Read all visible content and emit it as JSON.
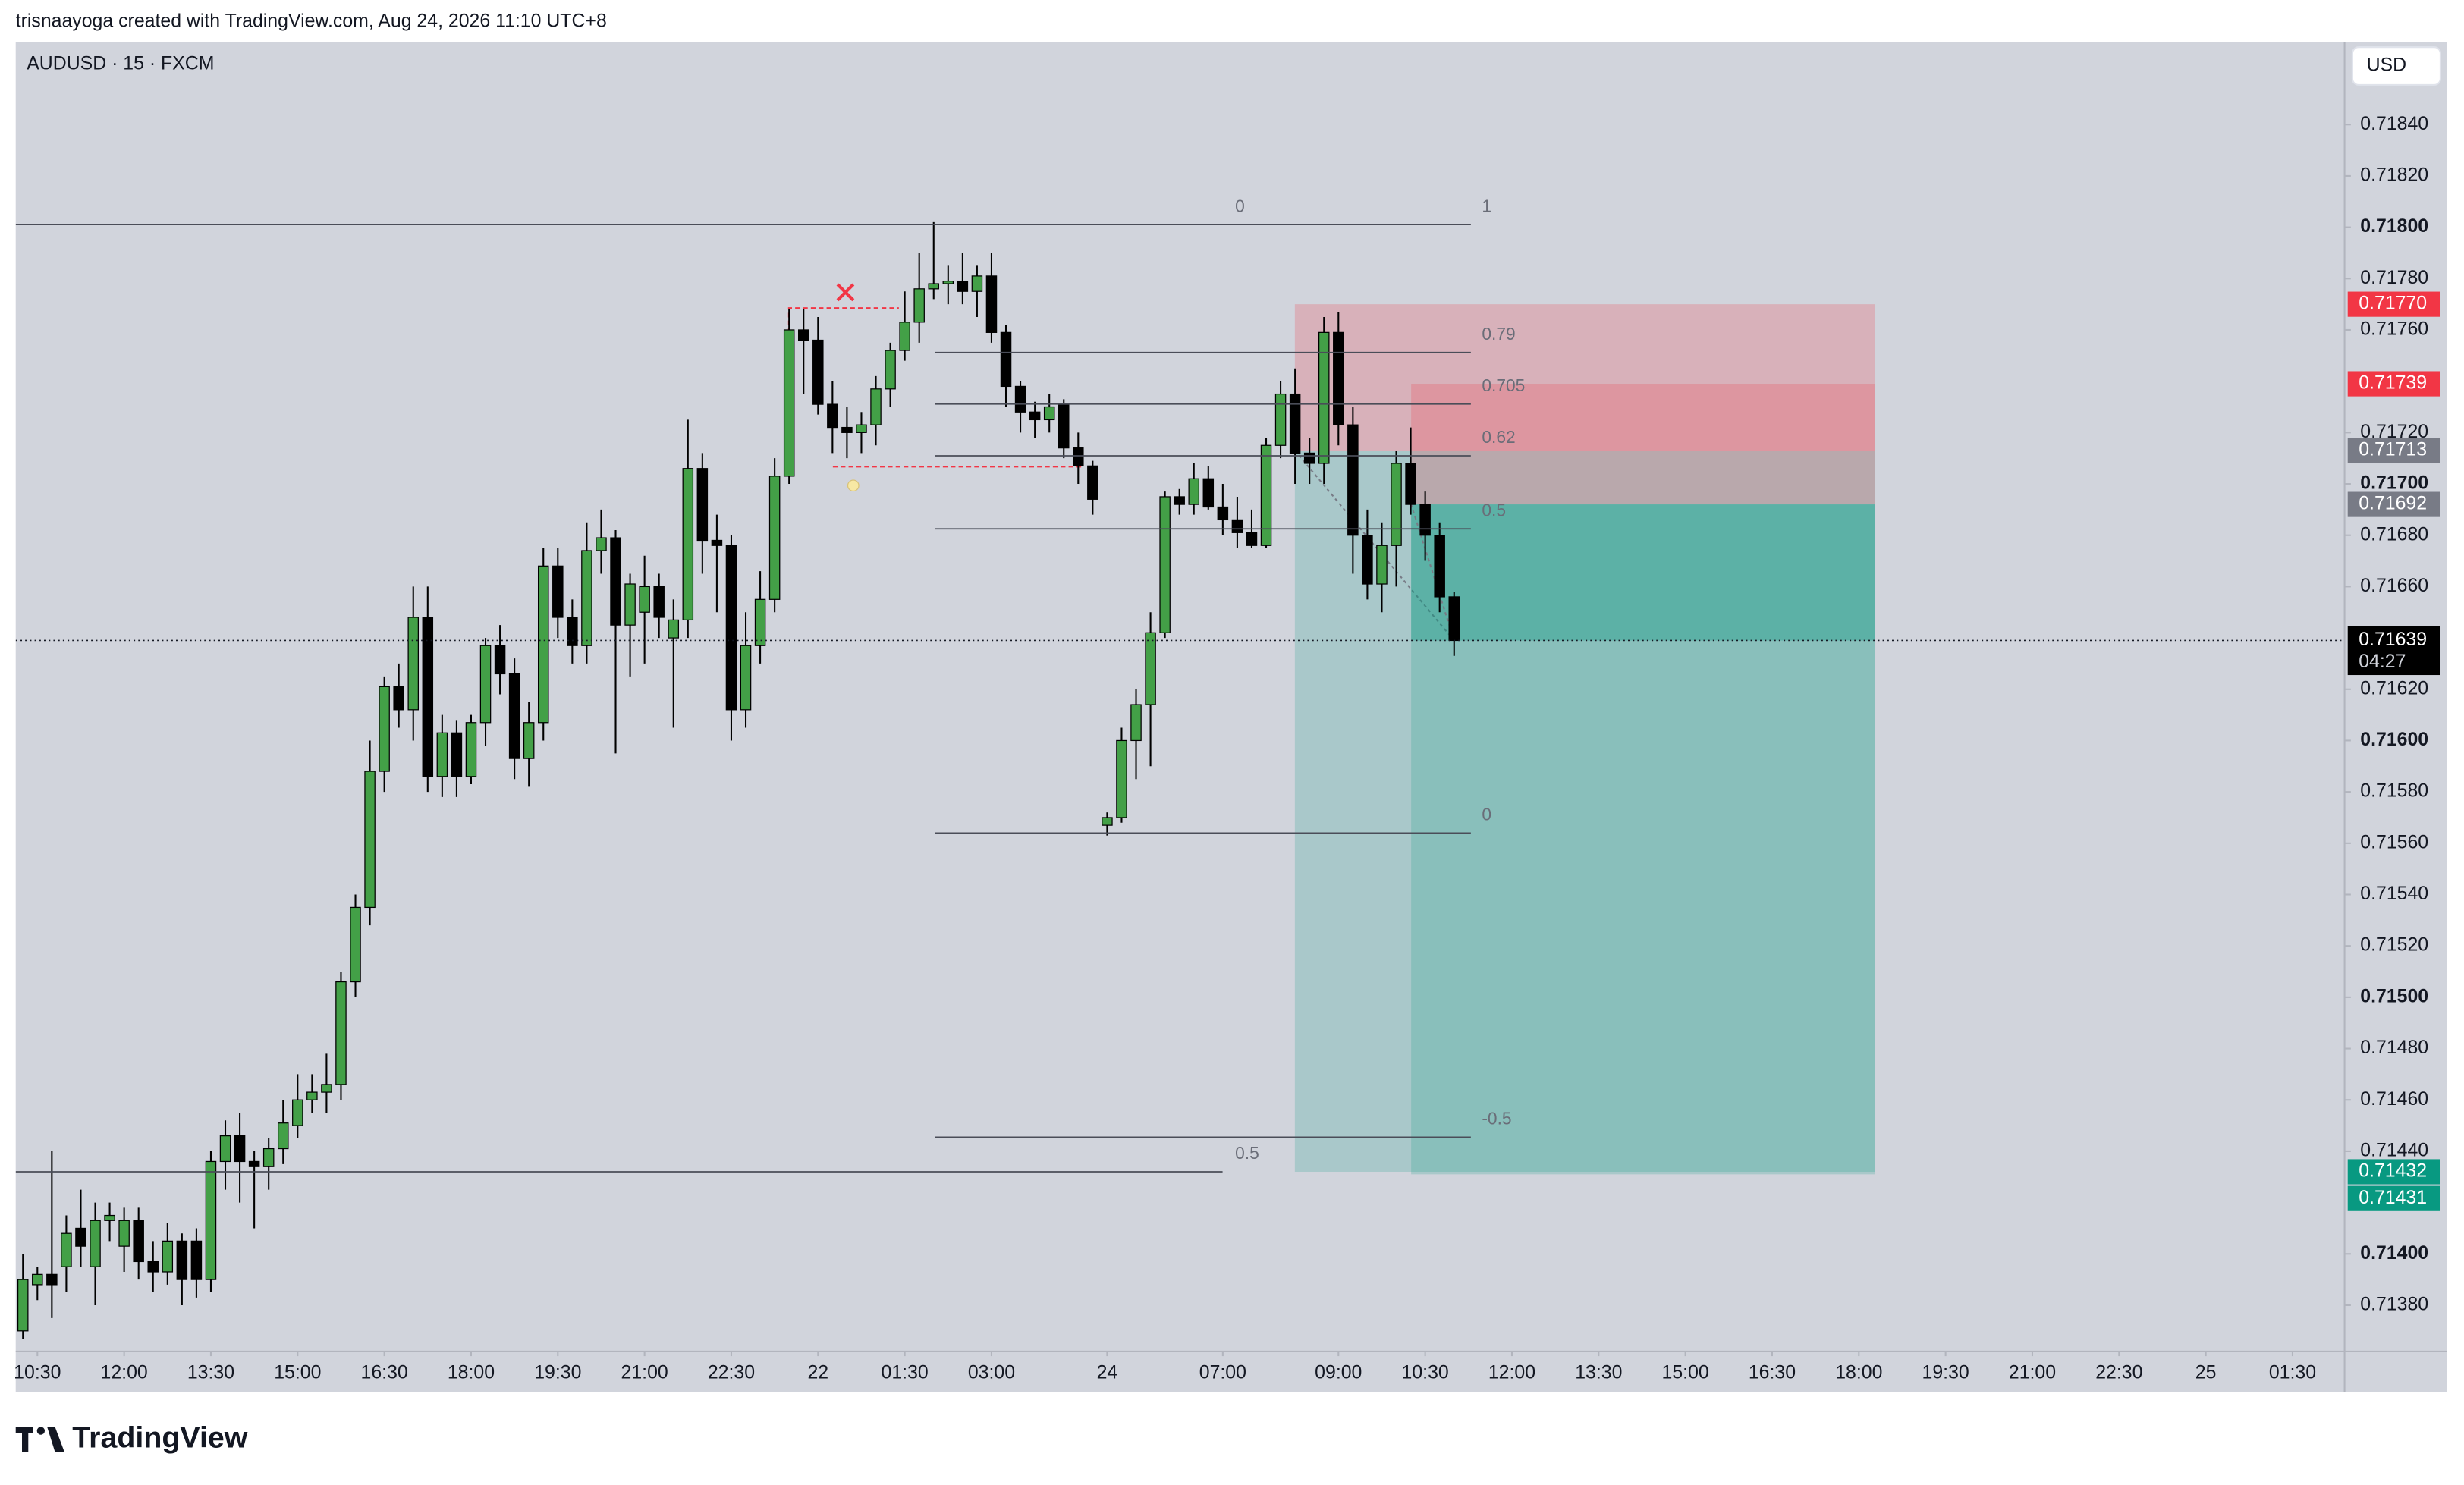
{
  "header": {
    "text": "trisnaayoga created with TradingView.com, Aug 24, 2026 11:10 UTC+8"
  },
  "logo": "TradingView",
  "chart_data": {
    "type": "candlestick",
    "title": "AUDUSD · 15 · FXCM",
    "currency": "USD",
    "up_color": "#43a047",
    "down_color": "#000000",
    "stop_color": "#f23645",
    "entry_color": "#787b86",
    "target_color": "#089981",
    "grid": false,
    "open": [
      0.7137,
      0.71388,
      0.71392,
      0.71395,
      0.7141,
      0.71395,
      0.71413,
      0.71403,
      0.71413,
      0.71397,
      0.71393,
      0.71405,
      0.71405,
      0.7139,
      0.71436,
      0.71446,
      0.71436,
      0.71434,
      0.71441,
      0.7145,
      0.7146,
      0.71463,
      0.71466,
      0.71506,
      0.71535,
      0.71588,
      0.71621,
      0.71612,
      0.71648,
      0.71586,
      0.71603,
      0.71586,
      0.71607,
      0.71637,
      0.71626,
      0.71593,
      0.71607,
      0.71668,
      0.71648,
      0.71637,
      0.71674,
      0.71679,
      0.71645,
      0.7165,
      0.7166,
      0.7164,
      0.71647,
      0.71706,
      0.71678,
      0.71676,
      0.71612,
      0.71637,
      0.71655,
      0.71703,
      0.7176,
      0.71756,
      0.71731,
      0.71722,
      0.7172,
      0.71723,
      0.71737,
      0.71752,
      0.71763,
      0.71776,
      0.71778,
      0.71779,
      0.71775,
      0.71781,
      0.71759,
      0.71738,
      0.71728,
      0.71725,
      0.71731,
      0.71714,
      0.71707,
      0.71567,
      0.7157,
      0.716,
      0.71614,
      0.71642,
      0.71695,
      0.71692,
      0.71702,
      0.71691,
      0.71686,
      0.71681,
      0.71676,
      0.71715,
      0.71735,
      0.71712,
      0.71708,
      0.71759,
      0.71723,
      0.7168,
      0.71661,
      0.71676,
      0.71708,
      0.71692,
      0.7168,
      0.71656
    ],
    "high": [
      0.714,
      0.71395,
      0.7144,
      0.71415,
      0.71425,
      0.7142,
      0.7142,
      0.71418,
      0.71418,
      0.71405,
      0.71412,
      0.71408,
      0.7141,
      0.7144,
      0.71452,
      0.71455,
      0.7144,
      0.71445,
      0.7146,
      0.7147,
      0.7147,
      0.71478,
      0.7151,
      0.7154,
      0.716,
      0.71625,
      0.7163,
      0.7166,
      0.7166,
      0.7161,
      0.71608,
      0.7161,
      0.7164,
      0.71645,
      0.71632,
      0.71615,
      0.71675,
      0.71675,
      0.71655,
      0.71685,
      0.7169,
      0.71682,
      0.71665,
      0.71672,
      0.71665,
      0.71655,
      0.71725,
      0.71712,
      0.71688,
      0.7168,
      0.7165,
      0.71666,
      0.7171,
      0.71768,
      0.71768,
      0.71765,
      0.7174,
      0.7173,
      0.71728,
      0.71742,
      0.71755,
      0.71775,
      0.7179,
      0.71802,
      0.71785,
      0.7179,
      0.71785,
      0.7179,
      0.71762,
      0.7174,
      0.71732,
      0.71735,
      0.71733,
      0.7172,
      0.71709,
      0.71572,
      0.71605,
      0.7162,
      0.7165,
      0.71697,
      0.71698,
      0.71708,
      0.71707,
      0.717,
      0.71695,
      0.7169,
      0.71718,
      0.7174,
      0.71745,
      0.71718,
      0.71765,
      0.71767,
      0.7173,
      0.7169,
      0.71685,
      0.71713,
      0.71722,
      0.71697,
      0.71685,
      0.71658
    ],
    "low": [
      0.71367,
      0.71382,
      0.71375,
      0.71385,
      0.71395,
      0.7138,
      0.71405,
      0.71393,
      0.7139,
      0.71385,
      0.71388,
      0.7138,
      0.71383,
      0.71385,
      0.71425,
      0.7142,
      0.7141,
      0.71425,
      0.71435,
      0.71445,
      0.71455,
      0.71455,
      0.7146,
      0.715,
      0.71528,
      0.7158,
      0.71605,
      0.716,
      0.7158,
      0.71578,
      0.71578,
      0.71583,
      0.71598,
      0.71618,
      0.71585,
      0.71582,
      0.716,
      0.7164,
      0.7163,
      0.7163,
      0.71665,
      0.71595,
      0.71625,
      0.7163,
      0.7164,
      0.71605,
      0.7164,
      0.71665,
      0.7165,
      0.716,
      0.71605,
      0.7163,
      0.7165,
      0.717,
      0.71735,
      0.71727,
      0.71712,
      0.7171,
      0.71712,
      0.71715,
      0.7173,
      0.71748,
      0.71755,
      0.71772,
      0.7177,
      0.7177,
      0.71765,
      0.71755,
      0.7173,
      0.7172,
      0.71718,
      0.7172,
      0.7171,
      0.717,
      0.71688,
      0.71563,
      0.71568,
      0.71585,
      0.7159,
      0.7164,
      0.71688,
      0.71688,
      0.7169,
      0.7168,
      0.71675,
      0.71675,
      0.71675,
      0.7171,
      0.717,
      0.717,
      0.717,
      0.71715,
      0.71665,
      0.71655,
      0.7165,
      0.7166,
      0.71688,
      0.7167,
      0.7165,
      0.71633
    ],
    "close": [
      0.7139,
      0.71392,
      0.71388,
      0.71408,
      0.71403,
      0.71413,
      0.71415,
      0.71413,
      0.71397,
      0.71393,
      0.71405,
      0.7139,
      0.7139,
      0.71436,
      0.71446,
      0.71436,
      0.71434,
      0.71441,
      0.71451,
      0.7146,
      0.71463,
      0.71466,
      0.71506,
      0.71535,
      0.71588,
      0.71621,
      0.71612,
      0.71648,
      0.71586,
      0.71603,
      0.71586,
      0.71607,
      0.71637,
      0.71626,
      0.71593,
      0.71607,
      0.71668,
      0.71648,
      0.71637,
      0.71674,
      0.71679,
      0.71645,
      0.71661,
      0.7166,
      0.71648,
      0.71647,
      0.71706,
      0.71678,
      0.71676,
      0.71612,
      0.71637,
      0.71655,
      0.71703,
      0.7176,
      0.71756,
      0.71731,
      0.71722,
      0.7172,
      0.71723,
      0.71737,
      0.71752,
      0.71763,
      0.71776,
      0.71778,
      0.71779,
      0.71775,
      0.71781,
      0.71759,
      0.71738,
      0.71728,
      0.71725,
      0.7173,
      0.71714,
      0.71707,
      0.71694,
      0.7157,
      0.716,
      0.71614,
      0.71642,
      0.71695,
      0.71692,
      0.71702,
      0.71691,
      0.71686,
      0.71681,
      0.71676,
      0.71715,
      0.71735,
      0.71712,
      0.71708,
      0.71759,
      0.71723,
      0.7168,
      0.71661,
      0.71676,
      0.71708,
      0.71692,
      0.7168,
      0.71656,
      0.71639
    ],
    "ylim": [
      0.71362,
      0.71872
    ],
    "yticks": [
      {
        "value": 0.7138,
        "label": "0.71380"
      },
      {
        "value": 0.714,
        "label": "0.71400"
      },
      {
        "value": 0.7144,
        "label": "0.71440"
      },
      {
        "value": 0.7146,
        "label": "0.71460"
      },
      {
        "value": 0.7148,
        "label": "0.71480"
      },
      {
        "value": 0.715,
        "label": "0.71500"
      },
      {
        "value": 0.7152,
        "label": "0.71520"
      },
      {
        "value": 0.7154,
        "label": "0.71540"
      },
      {
        "value": 0.7156,
        "label": "0.71560"
      },
      {
        "value": 0.7158,
        "label": "0.71580"
      },
      {
        "value": 0.716,
        "label": "0.71600"
      },
      {
        "value": 0.7162,
        "label": "0.71620"
      },
      {
        "value": 0.7166,
        "label": "0.71660"
      },
      {
        "value": 0.7168,
        "label": "0.71680"
      },
      {
        "value": 0.717,
        "label": "0.71700"
      },
      {
        "value": 0.7172,
        "label": "0.71720"
      },
      {
        "value": 0.7176,
        "label": "0.71760"
      },
      {
        "value": 0.7178,
        "label": "0.71780"
      },
      {
        "value": 0.718,
        "label": "0.71800"
      },
      {
        "value": 0.7182,
        "label": "0.71820"
      },
      {
        "value": 0.7184,
        "label": "0.71840"
      }
    ],
    "xlim": [
      -0.5,
      160.6
    ],
    "xticks": [
      {
        "value": 1,
        "label": "10:30"
      },
      {
        "value": 7,
        "label": "12:00"
      },
      {
        "value": 13,
        "label": "13:30"
      },
      {
        "value": 19,
        "label": "15:00"
      },
      {
        "value": 25,
        "label": "16:30"
      },
      {
        "value": 31,
        "label": "18:00"
      },
      {
        "value": 37,
        "label": "19:30"
      },
      {
        "value": 43,
        "label": "21:00"
      },
      {
        "value": 49,
        "label": "22:30"
      },
      {
        "value": 55,
        "label": "22"
      },
      {
        "value": 61,
        "label": "01:30"
      },
      {
        "value": 67,
        "label": "03:00"
      },
      {
        "value": 75,
        "label": "24"
      },
      {
        "value": 83,
        "label": "07:00"
      },
      {
        "value": 91,
        "label": "09:00"
      },
      {
        "value": 97,
        "label": "10:30"
      },
      {
        "value": 103,
        "label": "12:00"
      },
      {
        "value": 109,
        "label": "13:30"
      },
      {
        "value": 115,
        "label": "15:00"
      },
      {
        "value": 121,
        "label": "16:30"
      },
      {
        "value": 127,
        "label": "18:00"
      },
      {
        "value": 133,
        "label": "19:30"
      },
      {
        "value": 139,
        "label": "21:00"
      },
      {
        "value": 145,
        "label": "22:30"
      },
      {
        "value": 151,
        "label": "25"
      },
      {
        "value": 157,
        "label": "01:30"
      }
    ],
    "last": 0.71639,
    "countdown": "04:27",
    "fibs": [
      {
        "price_0": 0.71801,
        "price_1": 0.71063,
        "levels": [
          0,
          0.5
        ]
      },
      {
        "price_0": 0.71564,
        "price_1": 0.71801,
        "levels": [
          1,
          0.79,
          0.705,
          0.62,
          0.5,
          0,
          -0.5
        ]
      }
    ],
    "positions": [
      {
        "stop": {
          "value": 0.7177,
          "label": "0.71770"
        },
        "entry": 0.71713,
        "target": 0.71432
      },
      {
        "stop": 0.71739,
        "entry": 0.71692,
        "target": 0.71431
      }
    ]
  }
}
